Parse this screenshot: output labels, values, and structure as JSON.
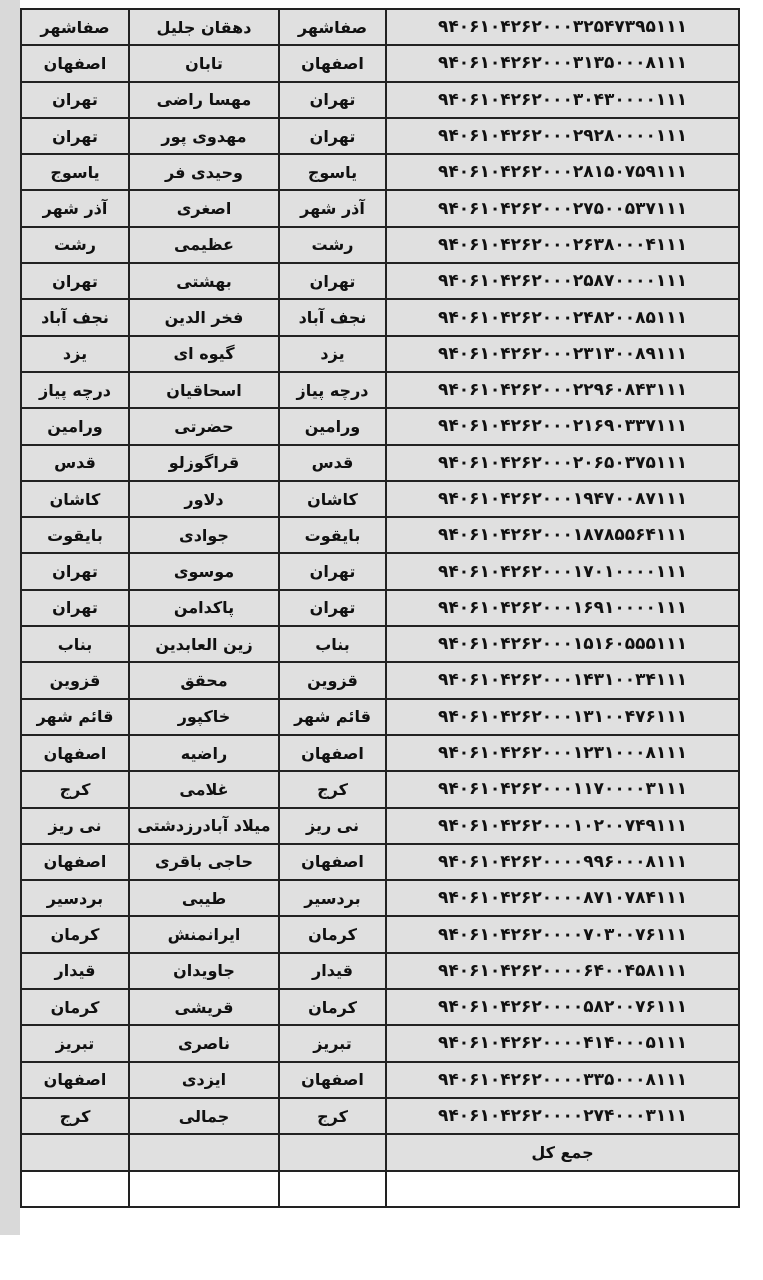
{
  "table": {
    "rows": [
      {
        "number": "۹۴۰۶۱۰۴۲۶۲۰۰۰۳۲۵۴۷۳۹۵۱۱۱",
        "city": "صفاشهر",
        "name": "دهقان جلیل",
        "city2": "صفاشهر"
      },
      {
        "number": "۹۴۰۶۱۰۴۲۶۲۰۰۰۳۱۳۵۰۰۰۸۱۱۱",
        "city": "اصفهان",
        "name": "تابان",
        "city2": "اصفهان"
      },
      {
        "number": "۹۴۰۶۱۰۴۲۶۲۰۰۰۳۰۴۳۰۰۰۰۱۱۱",
        "city": "تهران",
        "name": "مهسا راضی",
        "city2": "تهران"
      },
      {
        "number": "۹۴۰۶۱۰۴۲۶۲۰۰۰۲۹۲۸۰۰۰۰۱۱۱",
        "city": "تهران",
        "name": "مهدوی پور",
        "city2": "تهران"
      },
      {
        "number": "۹۴۰۶۱۰۴۲۶۲۰۰۰۲۸۱۵۰۷۵۹۱۱۱",
        "city": "یاسوج",
        "name": "وحیدی فر",
        "city2": "یاسوج"
      },
      {
        "number": "۹۴۰۶۱۰۴۲۶۲۰۰۰۲۷۵۰۰۵۳۷۱۱۱",
        "city": "آذر شهر",
        "name": "اصغری",
        "city2": "آذر شهر"
      },
      {
        "number": "۹۴۰۶۱۰۴۲۶۲۰۰۰۲۶۳۸۰۰۰۴۱۱۱",
        "city": "رشت",
        "name": "عظیمی",
        "city2": "رشت"
      },
      {
        "number": "۹۴۰۶۱۰۴۲۶۲۰۰۰۲۵۸۷۰۰۰۰۱۱۱",
        "city": "تهران",
        "name": "بهشتی",
        "city2": "تهران"
      },
      {
        "number": "۹۴۰۶۱۰۴۲۶۲۰۰۰۲۴۸۲۰۰۸۵۱۱۱",
        "city": "نجف آباد",
        "name": "فخر الدین",
        "city2": "نجف آباد"
      },
      {
        "number": "۹۴۰۶۱۰۴۲۶۲۰۰۰۲۳۱۳۰۰۸۹۱۱۱",
        "city": "یزد",
        "name": "گیوه ای",
        "city2": "یزد"
      },
      {
        "number": "۹۴۰۶۱۰۴۲۶۲۰۰۰۲۲۹۶۰۸۴۳۱۱۱",
        "city": "درچه پیاز",
        "name": "اسحاقیان",
        "city2": "درچه پیاز"
      },
      {
        "number": "۹۴۰۶۱۰۴۲۶۲۰۰۰۲۱۶۹۰۳۳۷۱۱۱",
        "city": "ورامین",
        "name": "حضرتی",
        "city2": "ورامین"
      },
      {
        "number": "۹۴۰۶۱۰۴۲۶۲۰۰۰۲۰۶۵۰۳۷۵۱۱۱",
        "city": "قدس",
        "name": "قراگوزلو",
        "city2": "قدس"
      },
      {
        "number": "۹۴۰۶۱۰۴۲۶۲۰۰۰۱۹۴۷۰۰۸۷۱۱۱",
        "city": "کاشان",
        "name": "دلاور",
        "city2": "کاشان"
      },
      {
        "number": "۹۴۰۶۱۰۴۲۶۲۰۰۰۱۸۷۸۵۵۶۴۱۱۱",
        "city": "بایقوت",
        "name": "جوادی",
        "city2": "بایقوت"
      },
      {
        "number": "۹۴۰۶۱۰۴۲۶۲۰۰۰۱۷۰۱۰۰۰۰۱۱۱",
        "city": "تهران",
        "name": "موسوی",
        "city2": "تهران"
      },
      {
        "number": "۹۴۰۶۱۰۴۲۶۲۰۰۰۱۶۹۱۰۰۰۰۱۱۱",
        "city": "تهران",
        "name": "پاکدامن",
        "city2": "تهران"
      },
      {
        "number": "۹۴۰۶۱۰۴۲۶۲۰۰۰۱۵۱۶۰۵۵۵۱۱۱",
        "city": "بناب",
        "name": "زین العابدین",
        "city2": "بناب"
      },
      {
        "number": "۹۴۰۶۱۰۴۲۶۲۰۰۰۱۴۳۱۰۰۳۴۱۱۱",
        "city": "قزوین",
        "name": "محقق",
        "city2": "قزوین"
      },
      {
        "number": "۹۴۰۶۱۰۴۲۶۲۰۰۰۱۳۱۰۰۴۷۶۱۱۱",
        "city": "قائم شهر",
        "name": "خاکپور",
        "city2": "قائم شهر"
      },
      {
        "number": "۹۴۰۶۱۰۴۲۶۲۰۰۰۱۲۳۱۰۰۰۸۱۱۱",
        "city": "اصفهان",
        "name": "راضیه",
        "city2": "اصفهان"
      },
      {
        "number": "۹۴۰۶۱۰۴۲۶۲۰۰۰۱۱۷۰۰۰۰۳۱۱۱",
        "city": "کرج",
        "name": "غلامی",
        "city2": "کرج"
      },
      {
        "number": "۹۴۰۶۱۰۴۲۶۲۰۰۰۱۰۲۰۰۷۴۹۱۱۱",
        "city": "نی ریز",
        "name": "میلاد آبادرزدشتی",
        "city2": "نی ریز"
      },
      {
        "number": "۹۴۰۶۱۰۴۲۶۲۰۰۰۰۹۹۶۰۰۰۸۱۱۱",
        "city": "اصفهان",
        "name": "حاجی باقری",
        "city2": "اصفهان"
      },
      {
        "number": "۹۴۰۶۱۰۴۲۶۲۰۰۰۰۸۷۱۰۷۸۴۱۱۱",
        "city": "بردسیر",
        "name": "طیبی",
        "city2": "بردسیر"
      },
      {
        "number": "۹۴۰۶۱۰۴۲۶۲۰۰۰۰۷۰۳۰۰۷۶۱۱۱",
        "city": "کرمان",
        "name": "ایرانمنش",
        "city2": "کرمان"
      },
      {
        "number": "۹۴۰۶۱۰۴۲۶۲۰۰۰۰۶۴۰۰۴۵۸۱۱۱",
        "city": "قیدار",
        "name": "جاویدان",
        "city2": "قیدار"
      },
      {
        "number": "۹۴۰۶۱۰۴۲۶۲۰۰۰۰۵۸۲۰۰۷۶۱۱۱",
        "city": "کرمان",
        "name": "قریشی",
        "city2": "کرمان"
      },
      {
        "number": "۹۴۰۶۱۰۴۲۶۲۰۰۰۰۴۱۴۰۰۰۵۱۱۱",
        "city": "تبریز",
        "name": "ناصری",
        "city2": "تبریز"
      },
      {
        "number": "۹۴۰۶۱۰۴۲۶۲۰۰۰۰۳۳۵۰۰۰۸۱۱۱",
        "city": "اصفهان",
        "name": "ایزدی",
        "city2": "اصفهان"
      },
      {
        "number": "۹۴۰۶۱۰۴۲۶۲۰۰۰۰۲۷۴۰۰۰۳۱۱۱",
        "city": "کرج",
        "name": "جمالی",
        "city2": "کرج"
      }
    ],
    "total_label": "جمع کل"
  }
}
